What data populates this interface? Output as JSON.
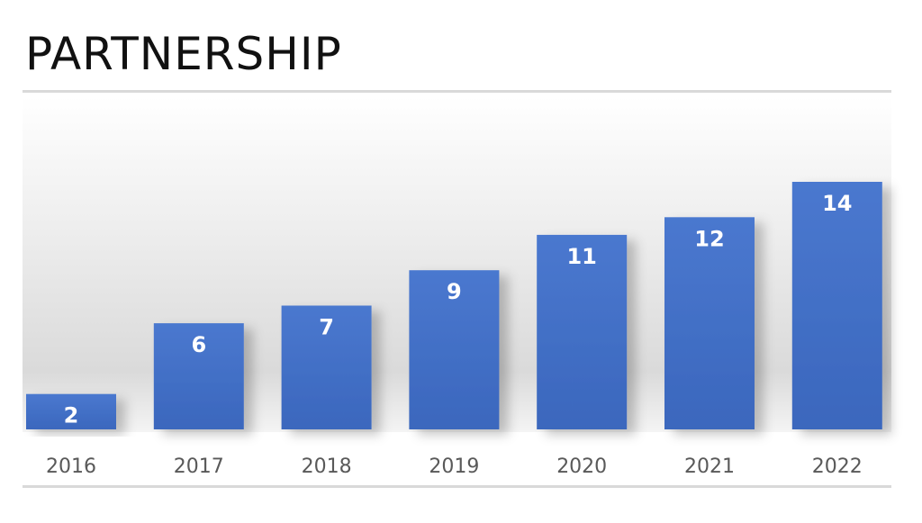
{
  "header": {
    "title": "PARTNERSHIP"
  },
  "colors": {
    "bar": "#3b67bd",
    "bar_top": "#4a78cf",
    "bar_label": "#ffffff",
    "tick_label": "#595959",
    "rule": "#d9d9d9"
  },
  "chart_data": {
    "type": "bar",
    "title": "",
    "xlabel": "",
    "ylabel": "",
    "categories": [
      "2016",
      "2017",
      "2018",
      "2019",
      "2020",
      "2021",
      "2022"
    ],
    "values": [
      2,
      6,
      7,
      9,
      11,
      12,
      14
    ],
    "data_labels": true,
    "ylim": [
      0,
      14
    ],
    "grid": false,
    "legend": "none"
  }
}
